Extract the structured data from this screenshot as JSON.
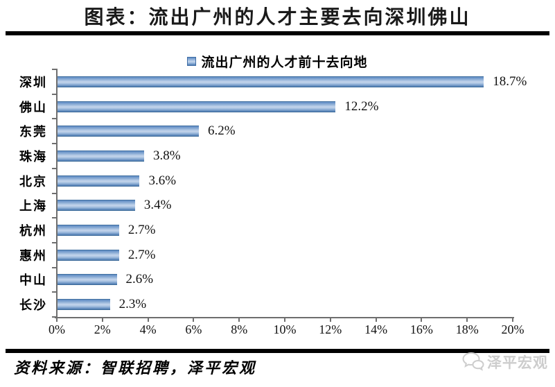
{
  "page": {
    "title": "图表：流出广州的人才主要去向深圳佛山",
    "source_note": "资料来源：智联招聘，泽平宏观",
    "watermark_label": "泽平宏观",
    "watermark_color": "#cdcdcd"
  },
  "chart_data": {
    "type": "bar",
    "orientation": "horizontal",
    "legend": "流出广州的人才前十去向地",
    "legend_position": "top-center",
    "categories": [
      "深圳",
      "佛山",
      "东莞",
      "珠海",
      "北京",
      "上海",
      "杭州",
      "惠州",
      "中山",
      "长沙"
    ],
    "values": [
      18.7,
      12.2,
      6.2,
      3.8,
      3.6,
      3.4,
      2.7,
      2.7,
      2.6,
      2.3
    ],
    "value_labels": [
      "18.7%",
      "12.2%",
      "6.2%",
      "3.8%",
      "3.6%",
      "3.4%",
      "2.7%",
      "2.7%",
      "2.6%",
      "2.3%"
    ],
    "xlim": [
      0,
      20
    ],
    "x_tick_labels": [
      "0%",
      "2%",
      "4%",
      "6%",
      "8%",
      "10%",
      "12%",
      "14%",
      "16%",
      "18%",
      "20%"
    ],
    "grid": false,
    "bar_color": "#4f81bd",
    "bar_highlight_color": "#c4d5eb",
    "axis_color": "#6e6e6e"
  }
}
